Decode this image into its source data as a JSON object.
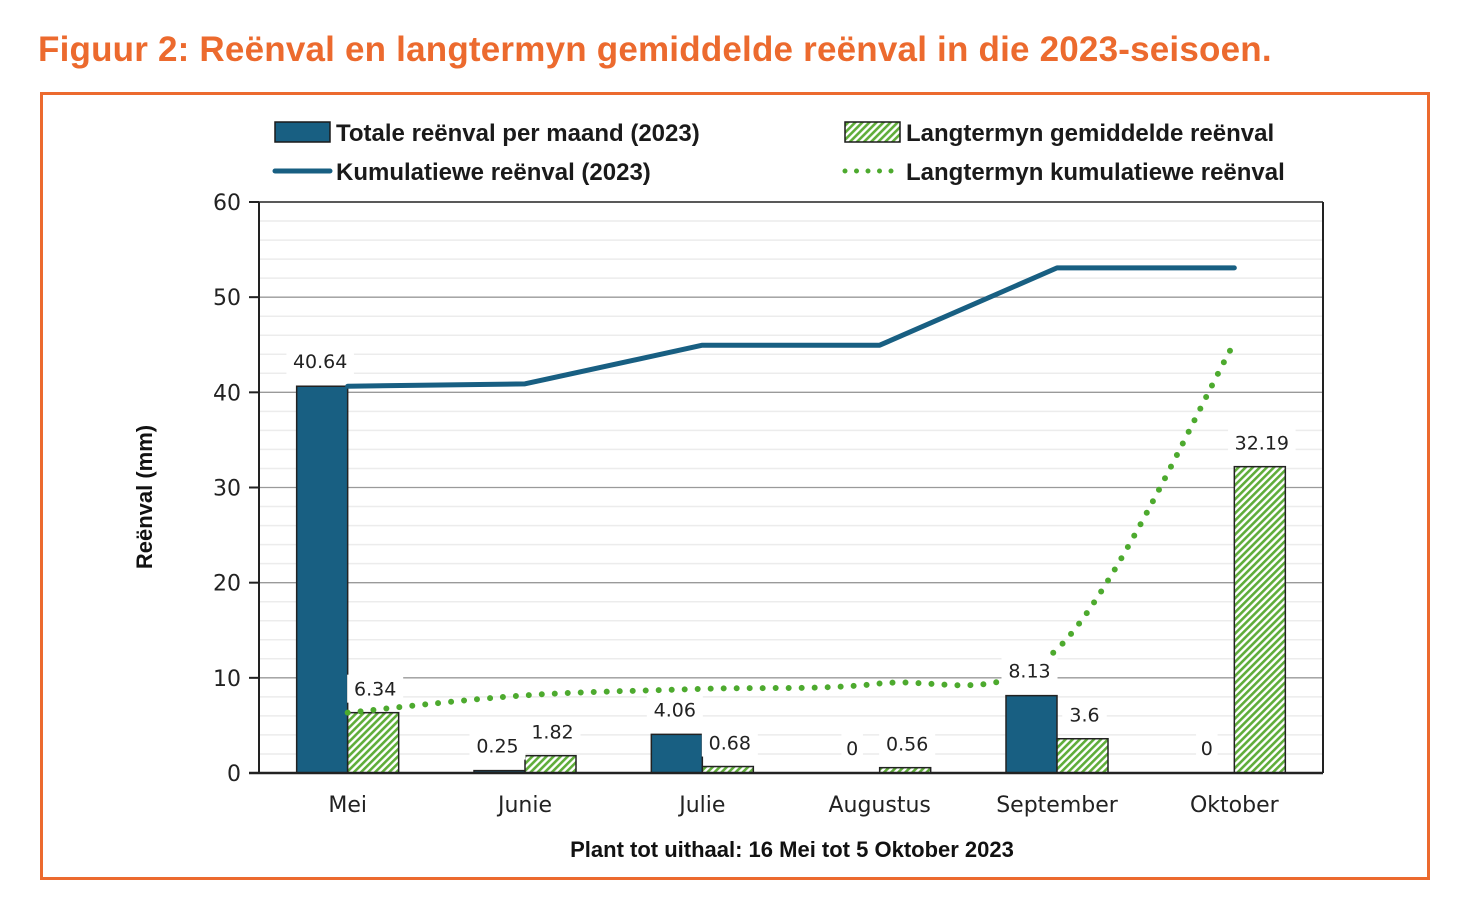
{
  "figure": {
    "title": "Figuur 2: Reënval en langtermyn gemiddelde reënval in die 2023-seisoen."
  },
  "colors": {
    "accent_orange": "#ec6a2e",
    "bar_2023": "#185f82",
    "bar_longterm": "#5fad3a",
    "line_2023": "#185f82",
    "line_longterm": "#4daa2e"
  },
  "chart_data": {
    "type": "bar",
    "title": "",
    "xlabel": "Plant tot uithaal: 16 Mei tot 5 Oktober 2023",
    "ylabel": "Reënval (mm)",
    "ylim": [
      0,
      60
    ],
    "yticks": [
      0,
      10,
      20,
      30,
      40,
      50,
      60
    ],
    "grid": true,
    "legend_position": "top",
    "categories": [
      "Mei",
      "Junie",
      "Julie",
      "Augustus",
      "September",
      "Oktober"
    ],
    "series": [
      {
        "name": "Totale reënval per maand (2023)",
        "type": "bar",
        "style": "solid",
        "values": [
          40.64,
          0.25,
          4.06,
          0,
          8.13,
          0
        ],
        "labels": [
          "40.64",
          "0.25",
          "4.06",
          "0",
          "8.13",
          "0"
        ]
      },
      {
        "name": "Langtermyn gemiddelde reënval",
        "type": "bar",
        "style": "hatched",
        "values": [
          6.34,
          1.82,
          0.68,
          0.56,
          3.6,
          32.19
        ],
        "labels": [
          "6.34",
          "1.82",
          "0.68",
          "0.56",
          "3.6",
          "32.19"
        ]
      },
      {
        "name": "Kumulatiewe reënval (2023)",
        "type": "line",
        "style": "solid",
        "values": [
          40.64,
          40.89,
          44.95,
          44.95,
          53.08,
          53.08
        ]
      },
      {
        "name": "Langtermyn kumulatiewe reënval",
        "type": "line",
        "style": "dotted",
        "values": [
          6.34,
          8.16,
          8.84,
          9.4,
          13.0,
          45.19
        ]
      }
    ]
  }
}
